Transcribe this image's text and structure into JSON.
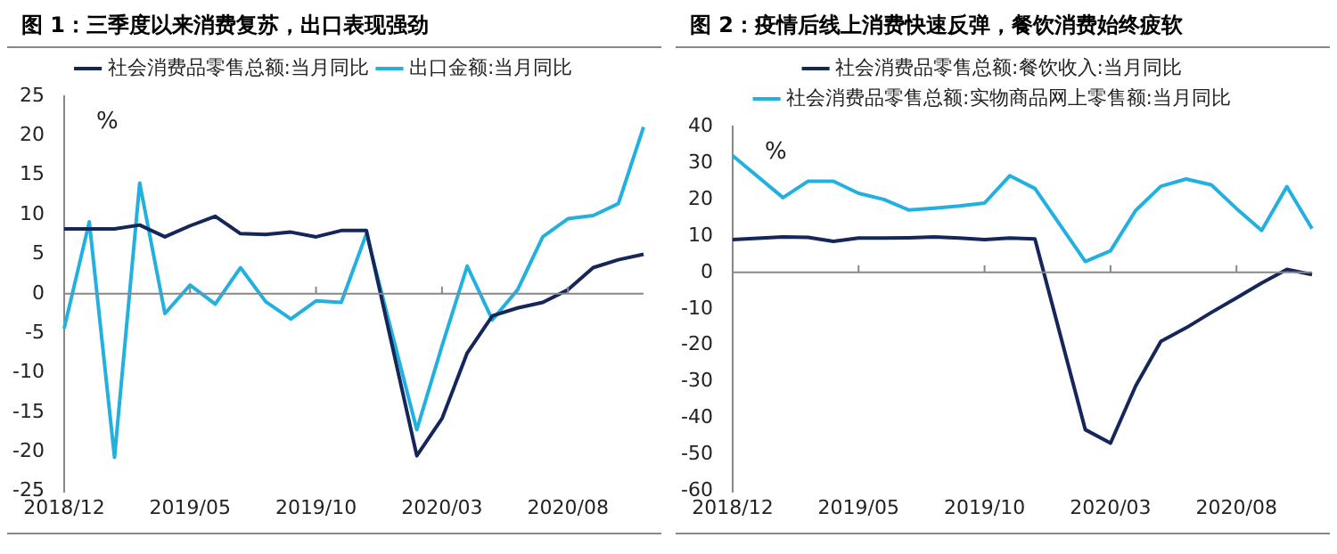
{
  "chart_data": [
    {
      "type": "line",
      "title": "图 1：三季度以来消费复苏，出口表现强劲",
      "ylabel": "%",
      "categories": [
        "2018/12",
        null,
        null,
        null,
        null,
        "2019/05",
        null,
        null,
        null,
        null,
        "2019/10",
        null,
        null,
        null,
        null,
        "2020/03",
        null,
        null,
        null,
        null,
        "2020/08",
        null,
        null,
        null
      ],
      "ylim": [
        -25,
        25
      ],
      "yticks": [
        -25,
        -20,
        -15,
        -10,
        -5,
        0,
        5,
        10,
        15,
        20,
        25
      ],
      "grid": false,
      "ref_lines": [
        {
          "axis": "y",
          "value": 0,
          "color": "#888888"
        }
      ],
      "legend": "top",
      "marker": "none",
      "series": [
        {
          "name": "社会消费品零售总额:当月同比",
          "color": "#14265a",
          "values": [
            8.2,
            null,
            8.2,
            8.7,
            7.2,
            8.6,
            9.8,
            7.6,
            7.5,
            7.8,
            7.2,
            8.0,
            8.0,
            null,
            -20.5,
            -15.8,
            -7.5,
            -2.8,
            -1.8,
            -1.1,
            0.5,
            3.3,
            4.3,
            5.0
          ]
        },
        {
          "name": "出口金额:当月同比",
          "color": "#22b0e0",
          "values": [
            -4.4,
            9.1,
            -20.7,
            14.0,
            -2.5,
            1.1,
            -1.3,
            3.3,
            -1.0,
            -3.2,
            -0.9,
            -1.1,
            7.6,
            null,
            -17.2,
            -6.6,
            3.5,
            -3.3,
            0.5,
            7.2,
            9.5,
            9.9,
            11.4,
            21.1
          ]
        }
      ]
    },
    {
      "type": "line",
      "title": "图 2：疫情后线上消费快速反弹，餐饮消费始终疲软",
      "ylabel": "%",
      "categories": [
        "2018/12",
        null,
        null,
        null,
        null,
        "2019/05",
        null,
        null,
        null,
        null,
        "2019/10",
        null,
        null,
        null,
        null,
        "2020/03",
        null,
        null,
        null,
        null,
        "2020/08",
        null,
        null,
        null
      ],
      "ylim": [
        -60,
        40
      ],
      "yticks": [
        -60,
        -50,
        -40,
        -30,
        -20,
        -10,
        0,
        10,
        20,
        30,
        40
      ],
      "grid": false,
      "ref_lines": [
        {
          "axis": "y",
          "value": 0,
          "color": "#888888"
        }
      ],
      "legend": "top",
      "marker": "none",
      "series": [
        {
          "name": "社会消费品零售总额:餐饮收入:当月同比",
          "color": "#14265a",
          "values": [
            9.0,
            null,
            9.7,
            9.6,
            8.5,
            9.4,
            9.4,
            9.5,
            9.7,
            9.4,
            9.0,
            9.4,
            9.2,
            null,
            -43.1,
            -46.8,
            -31.1,
            -18.9,
            -15.2,
            -11.0,
            -7.0,
            -2.9,
            0.8,
            -0.6
          ]
        },
        {
          "name": "社会消费品零售总额:实物商品网上零售额:当月同比",
          "color": "#22b0e0",
          "values": [
            32.0,
            null,
            20.5,
            25.0,
            25.0,
            21.7,
            20.0,
            17.1,
            17.6,
            18.2,
            19.0,
            26.5,
            23.0,
            null,
            3.0,
            5.9,
            17.0,
            23.6,
            25.6,
            24.0,
            17.5,
            11.5,
            23.5,
            12.0
          ]
        }
      ]
    }
  ]
}
